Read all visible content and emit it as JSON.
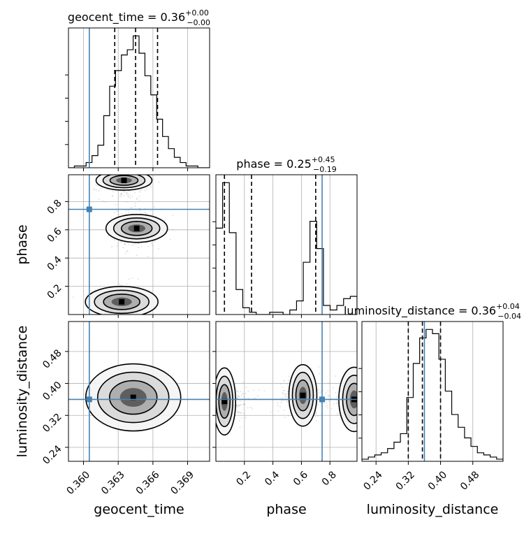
{
  "chart_data": {
    "type": "corner",
    "parameters": [
      "geocent_time",
      "phase",
      "luminosity_distance"
    ],
    "truth_color": "#4682b4",
    "truths": {
      "geocent_time": 0.3605,
      "phase": 0.745,
      "luminosity_distance": 0.36
    },
    "titles": {
      "geocent_time": {
        "name": "geocent_time",
        "median": "0.36",
        "plus": "+0.00",
        "minus": "−0.00"
      },
      "phase": {
        "name": "phase",
        "median": "0.25",
        "plus": "+0.45",
        "minus": "−0.19"
      },
      "luminosity_distance": {
        "name": "luminosity_distance",
        "median": "0.36",
        "plus": "+0.04",
        "minus": "−0.04"
      }
    },
    "axis_labels": {
      "geocent_time": "geocent_time",
      "phase": "phase",
      "luminosity_distance": "luminosity_distance"
    },
    "ranges": {
      "geocent_time": [
        0.3587,
        0.3709
      ],
      "phase": [
        0.0,
        0.99
      ],
      "luminosity_distance": [
        0.205,
        0.555
      ]
    },
    "ticks": {
      "geocent_time": {
        "values": [
          0.36,
          0.363,
          0.366,
          0.369
        ],
        "labels": [
          "0.360",
          "0.363",
          "0.366",
          "0.369"
        ]
      },
      "phase": {
        "values": [
          0.2,
          0.4,
          0.6,
          0.8
        ],
        "labels": [
          "0.2",
          "0.4",
          "0.6",
          "0.8"
        ]
      },
      "luminosity_distance": {
        "values": [
          0.24,
          0.32,
          0.4,
          0.48
        ],
        "labels": [
          "0.24",
          "0.32",
          "0.40",
          "0.48"
        ]
      }
    },
    "quantiles": {
      "geocent_time": [
        0.3627,
        0.3645,
        0.3664
      ],
      "phase": [
        0.06,
        0.25,
        0.7
      ],
      "luminosity_distance": [
        0.32,
        0.355,
        0.4
      ]
    },
    "histograms": {
      "geocent_time": {
        "counts": [
          0,
          1,
          1,
          3,
          7,
          13,
          30,
          47,
          56,
          65,
          68,
          76,
          66,
          53,
          42,
          28,
          18,
          11,
          6,
          3,
          1,
          1,
          0,
          0
        ]
      },
      "phase": {
        "counts": [
          38,
          58,
          36,
          11,
          3,
          1,
          0,
          0,
          1,
          1,
          0,
          2,
          6,
          23,
          41,
          29,
          4,
          2,
          4,
          7,
          8
        ]
      },
      "luminosity_distance": {
        "counts": [
          1,
          2,
          3,
          4,
          6,
          9,
          13,
          30,
          46,
          58,
          62,
          60,
          48,
          33,
          22,
          16,
          11,
          7,
          4,
          3,
          2,
          1
        ]
      }
    },
    "density_modes": [
      {
        "pair": [
          "geocent_time",
          "phase"
        ],
        "x": 0.3633,
        "y": 0.09
      },
      {
        "pair": [
          "geocent_time",
          "phase"
        ],
        "x": 0.3646,
        "y": 0.61
      },
      {
        "pair": [
          "geocent_time",
          "phase"
        ],
        "x": 0.3635,
        "y": 0.95
      },
      {
        "pair": [
          "geocent_time",
          "luminosity_distance"
        ],
        "x": 0.3643,
        "y": 0.365
      },
      {
        "pair": [
          "phase",
          "luminosity_distance"
        ],
        "x": 0.06,
        "y": 0.355
      },
      {
        "pair": [
          "phase",
          "luminosity_distance"
        ],
        "x": 0.61,
        "y": 0.37
      },
      {
        "pair": [
          "phase",
          "luminosity_distance"
        ],
        "x": 0.97,
        "y": 0.36
      }
    ],
    "grid": true
  }
}
